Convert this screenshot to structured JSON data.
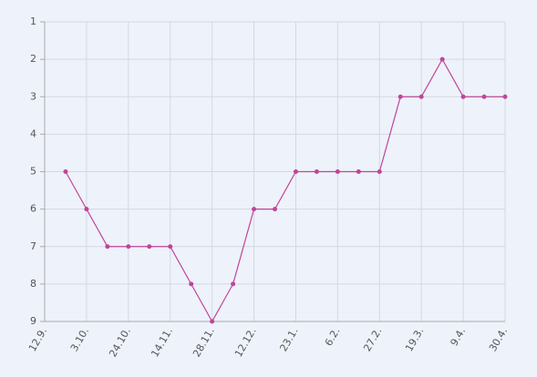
{
  "chart_data": {
    "type": "line",
    "categories": [
      "12.9.",
      null,
      "3.10.",
      null,
      "24.10.",
      null,
      "14.11.",
      null,
      "28.11.",
      null,
      "12.12.",
      null,
      "23.1.",
      null,
      "6.2.",
      null,
      "27.2.",
      null,
      "19.3.",
      null,
      "9.4.",
      null,
      "30.4."
    ],
    "values": [
      null,
      5,
      6,
      7,
      7,
      7,
      7,
      8,
      9,
      8,
      6,
      6,
      5,
      5,
      5,
      5,
      5,
      3,
      3,
      2,
      3,
      3,
      3
    ],
    "color": "#c0449a",
    "ylim": [
      9,
      1
    ],
    "yticks": [
      1,
      2,
      3,
      4,
      5,
      6,
      7,
      8,
      9
    ],
    "grid": true
  }
}
